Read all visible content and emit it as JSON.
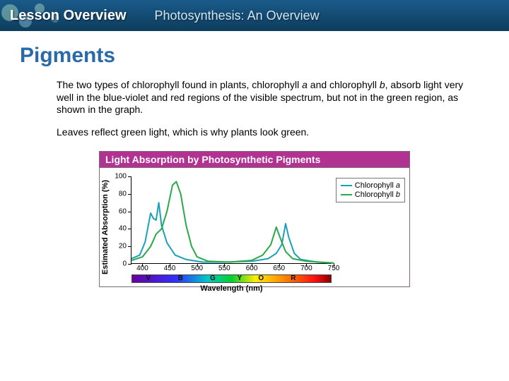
{
  "header": {
    "title": "Lesson Overview",
    "subtitle": "Photosynthesis: An Overview",
    "bg_gradient": [
      "#1a5a8a",
      "#0d3d5c"
    ],
    "title_color": "#ffffff",
    "subtitle_color": "#cfe6f5"
  },
  "section": {
    "title": "Pigments",
    "title_color": "#2a6aa8",
    "title_fontsize": 30
  },
  "paragraphs": {
    "p1a": "The two types of chlorophyll found in plants, chlorophyll ",
    "p1i1": "a",
    "p1b": " and chlorophyll ",
    "p1i2": "b",
    "p1c": ", absorb light very well in the blue-violet and red regions of the visible spectrum, but not in the green region, as shown in the graph.",
    "p2": "Leaves reflect green light, which is why plants look green.",
    "fontsize": 14
  },
  "chart": {
    "type": "line",
    "title": "Light Absorption by Photosynthetic Pigments",
    "title_bg": "#b23292",
    "title_color": "#ffffff",
    "xlabel": "Wavelength (nm)",
    "ylabel": "Estimated Absorption (%)",
    "label_fontsize": 11,
    "tick_fontsize": 10,
    "xlim": [
      380,
      750
    ],
    "ylim": [
      0,
      100
    ],
    "xticks": [
      400,
      450,
      500,
      550,
      600,
      650,
      700,
      750
    ],
    "yticks": [
      0,
      20,
      40,
      60,
      80,
      100
    ],
    "background_color": "#ffffff",
    "axis_color": "#000000",
    "series": [
      {
        "name": "Chlorophyll a",
        "name_italic_part": "a",
        "color": "#1aa0b8",
        "line_width": 2,
        "points": [
          [
            380,
            6
          ],
          [
            395,
            10
          ],
          [
            405,
            25
          ],
          [
            415,
            58
          ],
          [
            420,
            52
          ],
          [
            425,
            50
          ],
          [
            430,
            70
          ],
          [
            435,
            44
          ],
          [
            445,
            24
          ],
          [
            460,
            10
          ],
          [
            480,
            5
          ],
          [
            510,
            2
          ],
          [
            550,
            2
          ],
          [
            600,
            3
          ],
          [
            630,
            6
          ],
          [
            645,
            12
          ],
          [
            655,
            22
          ],
          [
            662,
            46
          ],
          [
            668,
            30
          ],
          [
            678,
            12
          ],
          [
            690,
            5
          ],
          [
            720,
            2
          ],
          [
            750,
            1
          ]
        ]
      },
      {
        "name": "Chlorophyll b",
        "name_italic_part": "b",
        "color": "#2aa84a",
        "line_width": 2,
        "points": [
          [
            380,
            4
          ],
          [
            400,
            8
          ],
          [
            415,
            20
          ],
          [
            425,
            34
          ],
          [
            435,
            40
          ],
          [
            445,
            60
          ],
          [
            455,
            90
          ],
          [
            462,
            94
          ],
          [
            470,
            80
          ],
          [
            480,
            44
          ],
          [
            490,
            20
          ],
          [
            500,
            8
          ],
          [
            520,
            3
          ],
          [
            560,
            2
          ],
          [
            600,
            4
          ],
          [
            620,
            10
          ],
          [
            635,
            22
          ],
          [
            645,
            42
          ],
          [
            652,
            30
          ],
          [
            662,
            14
          ],
          [
            675,
            6
          ],
          [
            700,
            3
          ],
          [
            750,
            1
          ]
        ]
      }
    ],
    "legend": {
      "position": "right",
      "border_color": "#777777",
      "entries": [
        {
          "label_prefix": "Chlorophyll ",
          "label_italic": "a",
          "color": "#1aa0b8"
        },
        {
          "label_prefix": "Chlorophyll ",
          "label_italic": "b",
          "color": "#2aa84a"
        }
      ]
    },
    "spectrum_bar": {
      "gradient_stops": [
        "#6a00a0",
        "#3030ff",
        "#00c8c8",
        "#00d030",
        "#ffee00",
        "#ff8a00",
        "#ff1010",
        "#8a0000"
      ],
      "band_labels": [
        {
          "letter": "V",
          "nm": 410
        },
        {
          "letter": "B",
          "nm": 470
        },
        {
          "letter": "G",
          "nm": 530
        },
        {
          "letter": "Y",
          "nm": 580
        },
        {
          "letter": "O",
          "nm": 620
        },
        {
          "letter": "R",
          "nm": 680
        }
      ]
    }
  }
}
